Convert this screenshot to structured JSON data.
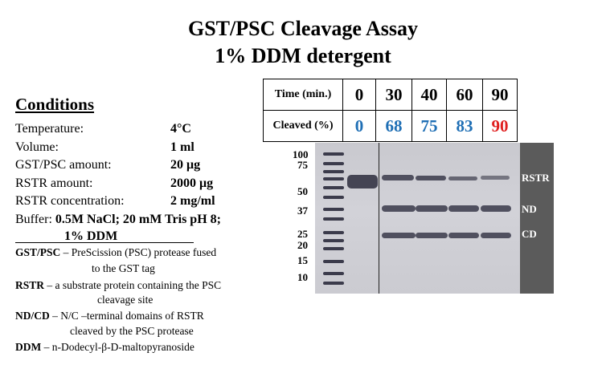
{
  "title": {
    "line1": "GST/PSC Cleavage Assay",
    "line2": "1% DDM detergent"
  },
  "conditions": {
    "heading": "Conditions",
    "rows": [
      {
        "label": "Temperature:",
        "value": "4°C"
      },
      {
        "label": "Volume:",
        "value": "1 ml"
      },
      {
        "label": "GST/PSC amount:",
        "value": "20 μg"
      },
      {
        "label": "RSTR amount:",
        "value": "2000 μg"
      },
      {
        "label": "RSTR concentration:",
        "value": "2 mg/ml"
      }
    ],
    "buffer_label": "Buffer:",
    "buffer_value": "0.5M NaCl; 20 mM Tris pH 8;",
    "buffer_value2": "1% DDM"
  },
  "definitions": [
    {
      "term": "GST/PSC",
      "text": " – PreScission (PSC) protease fused",
      "cont": "to the GST tag"
    },
    {
      "term": "RSTR",
      "text": " – a substrate protein containing the PSC",
      "cont": "cleavage site"
    },
    {
      "term": "ND/CD",
      "text": " – N/C –terminal domains of RSTR",
      "cont": "cleaved by the PSC protease"
    },
    {
      "term": "DDM",
      "text": " – n-Dodecyl-β-D-maltopyranoside",
      "cont": ""
    }
  ],
  "table": {
    "row1_header": "Time (min.)",
    "row2_header": "Cleaved (%)",
    "times": [
      "0",
      "30",
      "40",
      "60",
      "90"
    ],
    "cleaved": [
      "0",
      "68",
      "75",
      "83",
      "90"
    ],
    "colors": {
      "blue": "#1f6fb5",
      "red": "#e02020"
    },
    "cleaved_colors": [
      "blue",
      "blue",
      "blue",
      "blue",
      "red"
    ]
  },
  "gel": {
    "mw_markers": [
      "100",
      "75",
      "50",
      "37",
      "25",
      "20",
      "15",
      "10"
    ],
    "band_labels": [
      "RSTR",
      "ND",
      "CD"
    ]
  }
}
